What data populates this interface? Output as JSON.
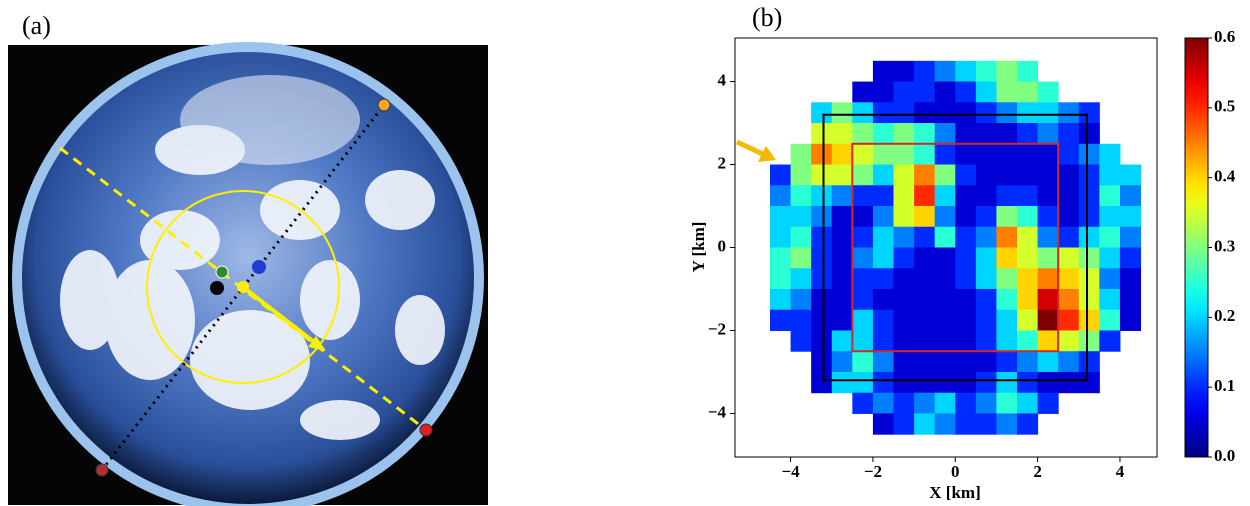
{
  "chart_data": [
    {
      "type": "image",
      "panel_label": "(a)"
    },
    {
      "type": "heatmap",
      "panel_label": "(b)",
      "xlabel": "X [km]",
      "ylabel": "Y [km]",
      "xlim": [
        -5.35,
        4.9
      ],
      "ylim": [
        -5.05,
        5.05
      ],
      "xticks": [
        {
          "value": -4,
          "label": "−4"
        },
        {
          "value": -2,
          "label": "−2"
        },
        0,
        2,
        4
      ],
      "yticks": [
        {
          "value": -4,
          "label": "−4"
        },
        {
          "value": -2,
          "label": "−2"
        },
        0,
        2,
        4
      ],
      "clim": [
        0,
        0.6
      ],
      "cticks": [
        {
          "value": 0,
          "label": "0.0"
        },
        0.1,
        0.2,
        0.3,
        0.4,
        0.5,
        0.6
      ],
      "colormap": "jet",
      "x": [
        -4.25,
        -3.75,
        -3.25,
        -2.75,
        -2.25,
        -1.75,
        -1.25,
        -0.75,
        -0.25,
        0.25,
        0.75,
        1.25,
        1.75,
        2.25,
        2.75,
        3.25,
        3.75,
        4.25
      ],
      "y": [
        4.25,
        3.75,
        3.25,
        2.75,
        2.25,
        1.75,
        1.25,
        0.75,
        0.25,
        -0.25,
        -0.75,
        -1.25,
        -1.75,
        -2.25,
        -2.75,
        -3.25,
        -3.75,
        -4.25
      ],
      "z": [
        [
          null,
          null,
          null,
          null,
          null,
          0.05,
          0.05,
          0.1,
          0.15,
          0.2,
          0.25,
          0.3,
          0.25,
          null,
          null,
          null,
          null,
          null
        ],
        [
          null,
          null,
          null,
          null,
          0.05,
          0.05,
          0.1,
          0.1,
          0.05,
          0.1,
          0.2,
          0.3,
          0.3,
          0.25,
          null,
          null,
          null,
          null
        ],
        [
          null,
          null,
          0.2,
          0.3,
          0.2,
          0.1,
          0.1,
          0.05,
          0.05,
          0.05,
          0.1,
          0.15,
          0.2,
          0.2,
          0.15,
          0.1,
          null,
          null
        ],
        [
          null,
          null,
          0.35,
          0.35,
          0.3,
          0.25,
          0.3,
          0.25,
          0.15,
          0.05,
          0.05,
          0.05,
          0.1,
          0.15,
          0.1,
          0.05,
          null,
          null
        ],
        [
          null,
          0.3,
          0.45,
          0.4,
          0.35,
          0.3,
          0.3,
          0.25,
          0.1,
          0.05,
          0.05,
          0.05,
          0.05,
          0.05,
          0.1,
          0.15,
          0.2,
          null
        ],
        [
          0.1,
          0.3,
          0.35,
          0.35,
          0.3,
          0.2,
          0.35,
          0.45,
          0.3,
          0.1,
          0.05,
          0.05,
          0.05,
          0.05,
          0.05,
          0.1,
          0.2,
          0.2
        ],
        [
          0.15,
          0.25,
          0.2,
          0.15,
          0.1,
          0.1,
          0.35,
          0.5,
          0.2,
          0.05,
          0.05,
          0.1,
          0.1,
          0.05,
          0.05,
          0.1,
          0.25,
          0.15
        ],
        [
          0.2,
          0.2,
          0.15,
          0.05,
          0.05,
          0.15,
          0.35,
          0.4,
          0.15,
          0.05,
          0.1,
          0.3,
          0.25,
          0.1,
          0.05,
          0.1,
          0.2,
          0.2
        ],
        [
          0.2,
          0.25,
          0.1,
          0.05,
          0.1,
          0.2,
          0.15,
          0.1,
          0.25,
          0.1,
          0.15,
          0.45,
          0.35,
          0.15,
          0.1,
          0.2,
          0.25,
          0.15
        ],
        [
          0.25,
          0.3,
          0.1,
          0.05,
          0.15,
          0.2,
          0.1,
          0.05,
          0.05,
          0.1,
          0.2,
          0.4,
          0.35,
          0.3,
          0.35,
          0.3,
          0.2,
          0.1
        ],
        [
          0.25,
          0.2,
          0.1,
          0.05,
          0.1,
          0.1,
          0.05,
          0.05,
          0.05,
          0.1,
          0.2,
          0.3,
          0.4,
          0.45,
          0.4,
          0.35,
          0.15,
          0.05
        ],
        [
          0.2,
          0.15,
          0.05,
          0.05,
          0.1,
          0.05,
          0.05,
          0.05,
          0.05,
          0.05,
          0.1,
          0.25,
          0.4,
          0.55,
          0.45,
          0.35,
          0.2,
          0.05
        ],
        [
          0.1,
          0.1,
          0.05,
          0.05,
          0.2,
          0.1,
          0.05,
          0.05,
          0.05,
          0.05,
          0.1,
          0.2,
          0.35,
          0.6,
          0.5,
          0.4,
          0.25,
          0.05
        ],
        [
          null,
          0.1,
          0.05,
          0.2,
          0.2,
          0.1,
          0.05,
          0.05,
          0.05,
          0.05,
          0.1,
          0.2,
          0.25,
          0.4,
          0.35,
          0.3,
          0.1,
          null
        ],
        [
          null,
          null,
          0.05,
          0.15,
          0.25,
          0.15,
          0.05,
          0.05,
          0.05,
          0.05,
          0.05,
          0.1,
          0.15,
          0.2,
          0.15,
          0.1,
          null,
          null
        ],
        [
          null,
          null,
          0.05,
          0.2,
          0.2,
          0.1,
          0.05,
          0.05,
          0.05,
          0.05,
          0.1,
          0.2,
          0.1,
          0.05,
          0.05,
          0.05,
          null,
          null
        ],
        [
          null,
          null,
          null,
          null,
          0.1,
          0.15,
          0.1,
          0.15,
          0.2,
          0.1,
          0.15,
          0.25,
          0.2,
          0.1,
          null,
          null,
          null,
          null
        ],
        [
          null,
          null,
          null,
          null,
          null,
          0.05,
          0.1,
          0.2,
          0.15,
          0.1,
          0.1,
          0.15,
          0.1,
          null,
          null,
          null,
          null,
          null
        ]
      ],
      "cell_size": 0.5,
      "rectangles": [
        {
          "x": [
            -3.2,
            3.2
          ],
          "y": [
            -3.2,
            3.2
          ],
          "color": "#000000"
        },
        {
          "x": [
            -2.5,
            2.5
          ],
          "y": [
            -2.5,
            2.5
          ],
          "color": "#d62728"
        }
      ]
    }
  ]
}
